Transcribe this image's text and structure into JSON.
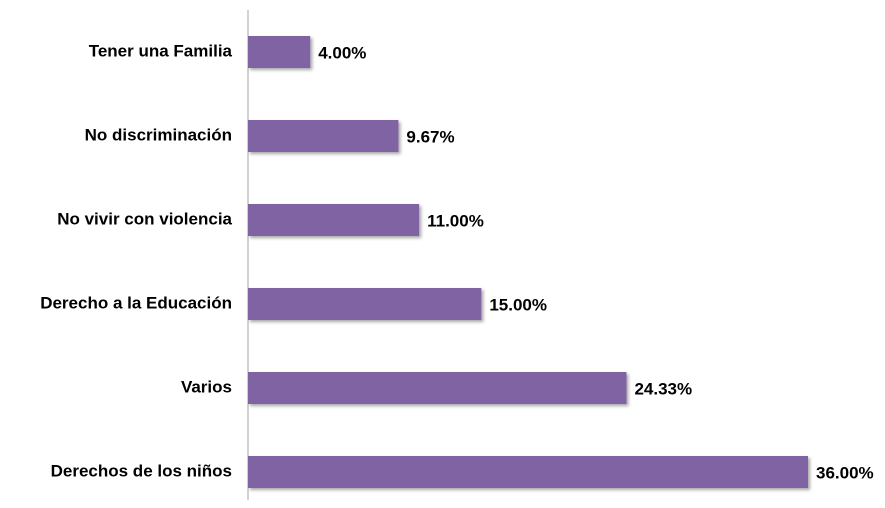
{
  "chart_data": {
    "type": "hbar",
    "categories": [
      "Tener una Familia",
      "No discriminación",
      "No vivir con violencia",
      "Derecho a la Educación",
      "Varios",
      "Derechos de los niños"
    ],
    "values": [
      4.0,
      9.67,
      11.0,
      15.0,
      24.33,
      36.0
    ],
    "value_labels": [
      "4.00%",
      "9.67%",
      "11.00%",
      "15.00%",
      "24.33%",
      "36.00%"
    ],
    "color": "#8064a2"
  }
}
